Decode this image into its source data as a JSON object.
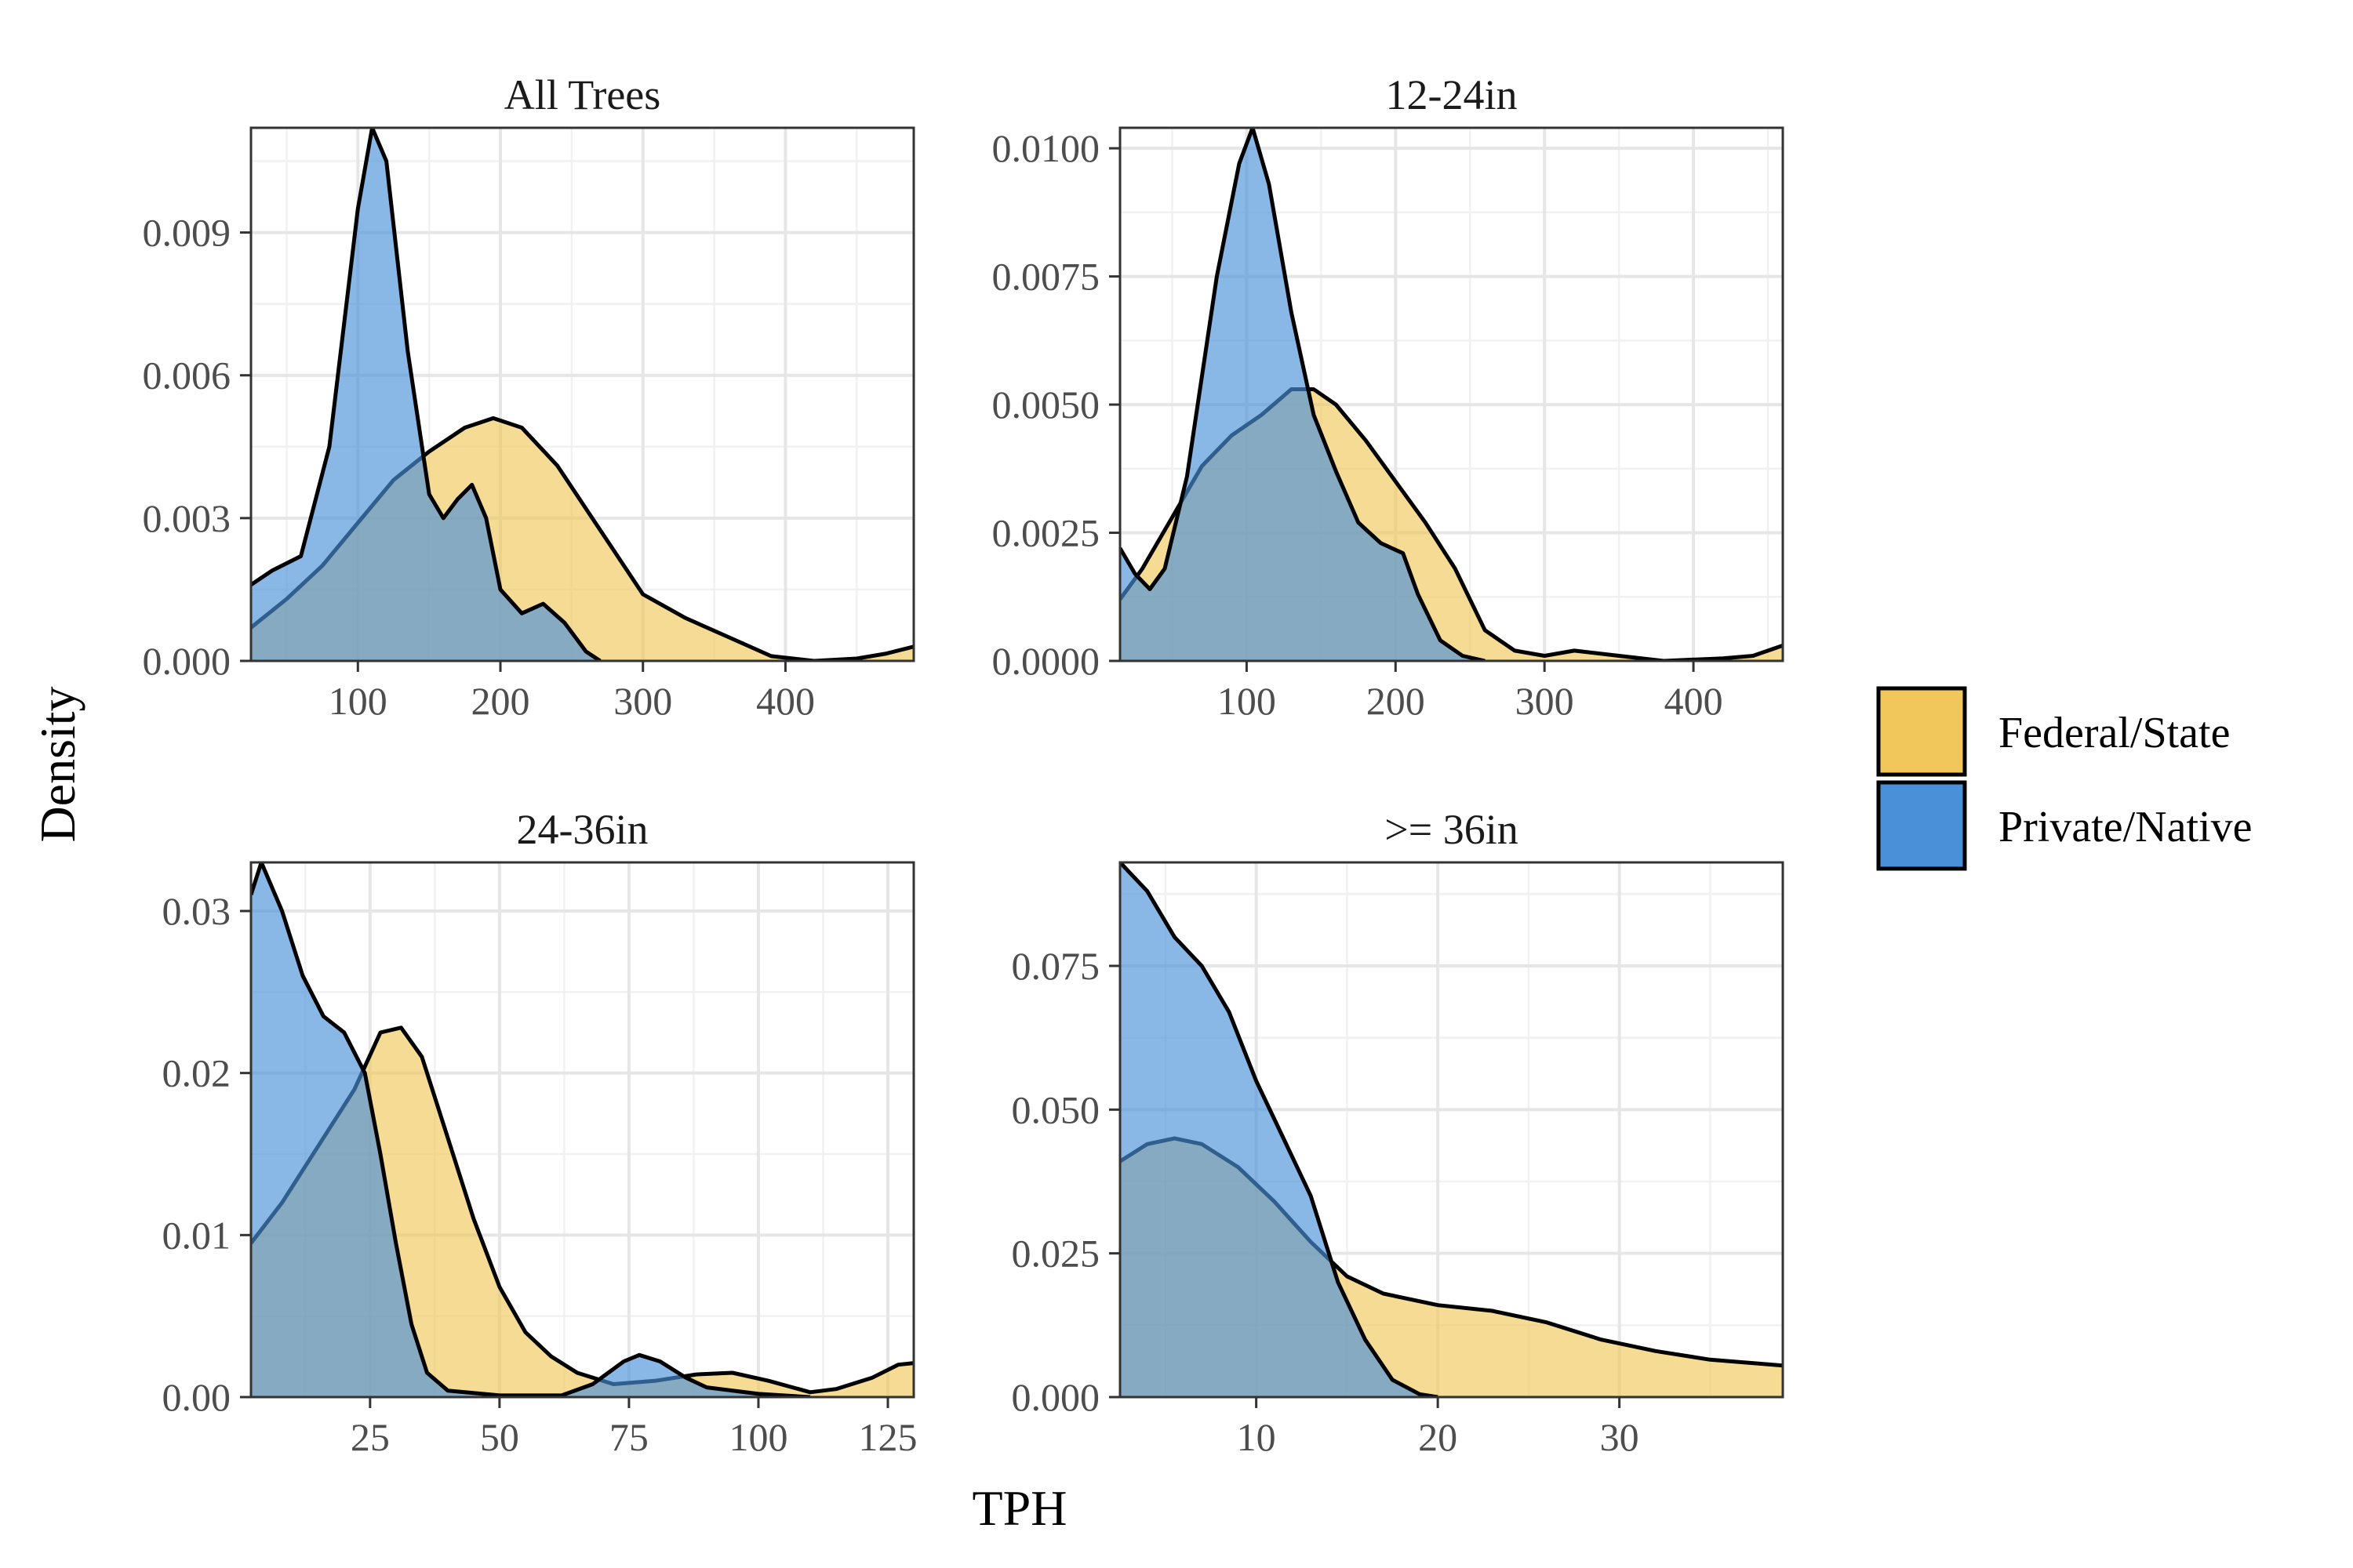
{
  "chart_data": {
    "type": "area",
    "chart_kind": "faceted density plot",
    "xlabel": "TPH",
    "ylabel": "Density",
    "grid": true,
    "legend": {
      "placement": "right",
      "entries": [
        {
          "name": "Federal/State",
          "color": "#f1c75b"
        },
        {
          "name": "Private/Native",
          "color": "#4a90d9"
        }
      ]
    },
    "colors": {
      "fed": "#f1c75b",
      "priv": "#4a90d9",
      "outline": "#000000"
    },
    "panels": [
      {
        "title": "All Trees",
        "xlim": [
          25,
          490
        ],
        "ylim": [
          0,
          0.0112
        ],
        "xticks": [
          100,
          200,
          300,
          400
        ],
        "xtick_labels": [
          "100",
          "200",
          "300",
          "400"
        ],
        "yticks": [
          0,
          0.003,
          0.006,
          0.009
        ],
        "ytick_labels": [
          "0.000",
          "0.003",
          "0.006",
          "0.009"
        ],
        "series": [
          {
            "name": "Federal/State",
            "points": [
              [
                25,
                0.0007
              ],
              [
                50,
                0.0013
              ],
              [
                75,
                0.002
              ],
              [
                100,
                0.0029
              ],
              [
                125,
                0.0038
              ],
              [
                150,
                0.0044
              ],
              [
                175,
                0.0049
              ],
              [
                195,
                0.0051
              ],
              [
                215,
                0.0049
              ],
              [
                240,
                0.0041
              ],
              [
                260,
                0.0032
              ],
              [
                280,
                0.0023
              ],
              [
                300,
                0.0014
              ],
              [
                330,
                0.0009
              ],
              [
                360,
                0.0005
              ],
              [
                390,
                0.0001
              ],
              [
                420,
                0
              ],
              [
                450,
                5e-05
              ],
              [
                470,
                0.00015
              ],
              [
                490,
                0.0003
              ]
            ]
          },
          {
            "name": "Private/Native",
            "points": [
              [
                25,
                0.0016
              ],
              [
                40,
                0.0019
              ],
              [
                60,
                0.0022
              ],
              [
                80,
                0.0045
              ],
              [
                100,
                0.0095
              ],
              [
                110,
                0.0112
              ],
              [
                120,
                0.0105
              ],
              [
                135,
                0.0065
              ],
              [
                150,
                0.0035
              ],
              [
                160,
                0.003
              ],
              [
                170,
                0.0034
              ],
              [
                180,
                0.0037
              ],
              [
                190,
                0.003
              ],
              [
                200,
                0.0015
              ],
              [
                215,
                0.001
              ],
              [
                230,
                0.0012
              ],
              [
                245,
                0.0008
              ],
              [
                260,
                0.0002
              ],
              [
                270,
                0
              ]
            ]
          }
        ]
      },
      {
        "title": "12-24in",
        "xlim": [
          15,
          460
        ],
        "ylim": [
          0,
          0.0104
        ],
        "xticks": [
          100,
          200,
          300,
          400
        ],
        "xtick_labels": [
          "100",
          "200",
          "300",
          "400"
        ],
        "yticks": [
          0,
          0.0025,
          0.005,
          0.0075,
          0.01
        ],
        "ytick_labels": [
          "0.0000",
          "0.0025",
          "0.0050",
          "0.0075",
          "0.0100"
        ],
        "series": [
          {
            "name": "Federal/State",
            "points": [
              [
                15,
                0.0012
              ],
              [
                30,
                0.0018
              ],
              [
                50,
                0.0028
              ],
              [
                70,
                0.0038
              ],
              [
                90,
                0.0044
              ],
              [
                110,
                0.0048
              ],
              [
                130,
                0.0053
              ],
              [
                145,
                0.0053
              ],
              [
                160,
                0.005
              ],
              [
                180,
                0.0043
              ],
              [
                200,
                0.0035
              ],
              [
                220,
                0.0027
              ],
              [
                240,
                0.0018
              ],
              [
                260,
                0.0006
              ],
              [
                280,
                0.0002
              ],
              [
                300,
                0.0001
              ],
              [
                320,
                0.0002
              ],
              [
                350,
                0.0001
              ],
              [
                380,
                0
              ],
              [
                420,
                5e-05
              ],
              [
                440,
                0.0001
              ],
              [
                460,
                0.0003
              ]
            ]
          },
          {
            "name": "Private/Native",
            "points": [
              [
                15,
                0.0022
              ],
              [
                25,
                0.0017
              ],
              [
                35,
                0.0014
              ],
              [
                45,
                0.0018
              ],
              [
                60,
                0.0036
              ],
              [
                80,
                0.0075
              ],
              [
                95,
                0.0097
              ],
              [
                104,
                0.0104
              ],
              [
                115,
                0.0093
              ],
              [
                130,
                0.0068
              ],
              [
                145,
                0.0048
              ],
              [
                160,
                0.0037
              ],
              [
                175,
                0.0027
              ],
              [
                190,
                0.0023
              ],
              [
                205,
                0.0021
              ],
              [
                215,
                0.0013
              ],
              [
                230,
                0.0004
              ],
              [
                245,
                0.0001
              ],
              [
                260,
                0
              ]
            ]
          }
        ]
      },
      {
        "title": "24-36in",
        "xlim": [
          2,
          130
        ],
        "ylim": [
          0,
          0.033
        ],
        "xticks": [
          25,
          50,
          75,
          100,
          125
        ],
        "xtick_labels": [
          "25",
          "50",
          "75",
          "100",
          "125"
        ],
        "yticks": [
          0,
          0.01,
          0.02,
          0.03
        ],
        "ytick_labels": [
          "0.00",
          "0.01",
          "0.02",
          "0.03"
        ],
        "series": [
          {
            "name": "Federal/State",
            "points": [
              [
                2,
                0.0095
              ],
              [
                8,
                0.012
              ],
              [
                15,
                0.0155
              ],
              [
                22,
                0.019
              ],
              [
                27,
                0.0225
              ],
              [
                31,
                0.0228
              ],
              [
                35,
                0.021
              ],
              [
                40,
                0.016
              ],
              [
                45,
                0.011
              ],
              [
                50,
                0.0068
              ],
              [
                55,
                0.004
              ],
              [
                60,
                0.0025
              ],
              [
                65,
                0.0015
              ],
              [
                72,
                0.0008
              ],
              [
                80,
                0.001
              ],
              [
                88,
                0.0014
              ],
              [
                95,
                0.0015
              ],
              [
                102,
                0.001
              ],
              [
                110,
                0.0003
              ],
              [
                115,
                0.0005
              ],
              [
                122,
                0.0012
              ],
              [
                127,
                0.002
              ],
              [
                130,
                0.0021
              ]
            ]
          },
          {
            "name": "Private/Native",
            "points": [
              [
                2,
                0.031
              ],
              [
                4,
                0.033
              ],
              [
                8,
                0.03
              ],
              [
                12,
                0.026
              ],
              [
                16,
                0.0235
              ],
              [
                20,
                0.0225
              ],
              [
                24,
                0.02
              ],
              [
                27,
                0.015
              ],
              [
                30,
                0.0095
              ],
              [
                33,
                0.0045
              ],
              [
                36,
                0.0015
              ],
              [
                40,
                0.0004
              ],
              [
                50,
                0.0001
              ],
              [
                62,
                0.0001
              ],
              [
                68,
                0.0008
              ],
              [
                74,
                0.0022
              ],
              [
                77,
                0.0026
              ],
              [
                81,
                0.0022
              ],
              [
                86,
                0.0012
              ],
              [
                90,
                0.0006
              ],
              [
                100,
                0.0002
              ],
              [
                110,
                0
              ]
            ]
          }
        ]
      },
      {
        "title": ">= 36in",
        "xlim": [
          2.5,
          39
        ],
        "ylim": [
          0,
          0.093
        ],
        "xticks": [
          10,
          20,
          30
        ],
        "xtick_labels": [
          "10",
          "20",
          "30"
        ],
        "yticks": [
          0,
          0.025,
          0.05,
          0.075
        ],
        "ytick_labels": [
          "0.000",
          "0.025",
          "0.050",
          "0.075"
        ],
        "series": [
          {
            "name": "Federal/State",
            "points": [
              [
                2.5,
                0.041
              ],
              [
                4,
                0.044
              ],
              [
                5.5,
                0.045
              ],
              [
                7,
                0.044
              ],
              [
                9,
                0.04
              ],
              [
                11,
                0.034
              ],
              [
                13,
                0.027
              ],
              [
                15,
                0.021
              ],
              [
                17,
                0.018
              ],
              [
                20,
                0.016
              ],
              [
                23,
                0.015
              ],
              [
                26,
                0.013
              ],
              [
                29,
                0.01
              ],
              [
                32,
                0.008
              ],
              [
                35,
                0.0065
              ],
              [
                39,
                0.0055
              ]
            ]
          },
          {
            "name": "Private/Native",
            "points": [
              [
                2.5,
                0.093
              ],
              [
                4,
                0.088
              ],
              [
                5.5,
                0.08
              ],
              [
                7,
                0.075
              ],
              [
                8.5,
                0.067
              ],
              [
                10,
                0.055
              ],
              [
                11.5,
                0.045
              ],
              [
                13,
                0.035
              ],
              [
                14.5,
                0.02
              ],
              [
                16,
                0.01
              ],
              [
                17.5,
                0.003
              ],
              [
                19,
                0.0005
              ],
              [
                20,
                0
              ]
            ]
          }
        ]
      }
    ]
  }
}
